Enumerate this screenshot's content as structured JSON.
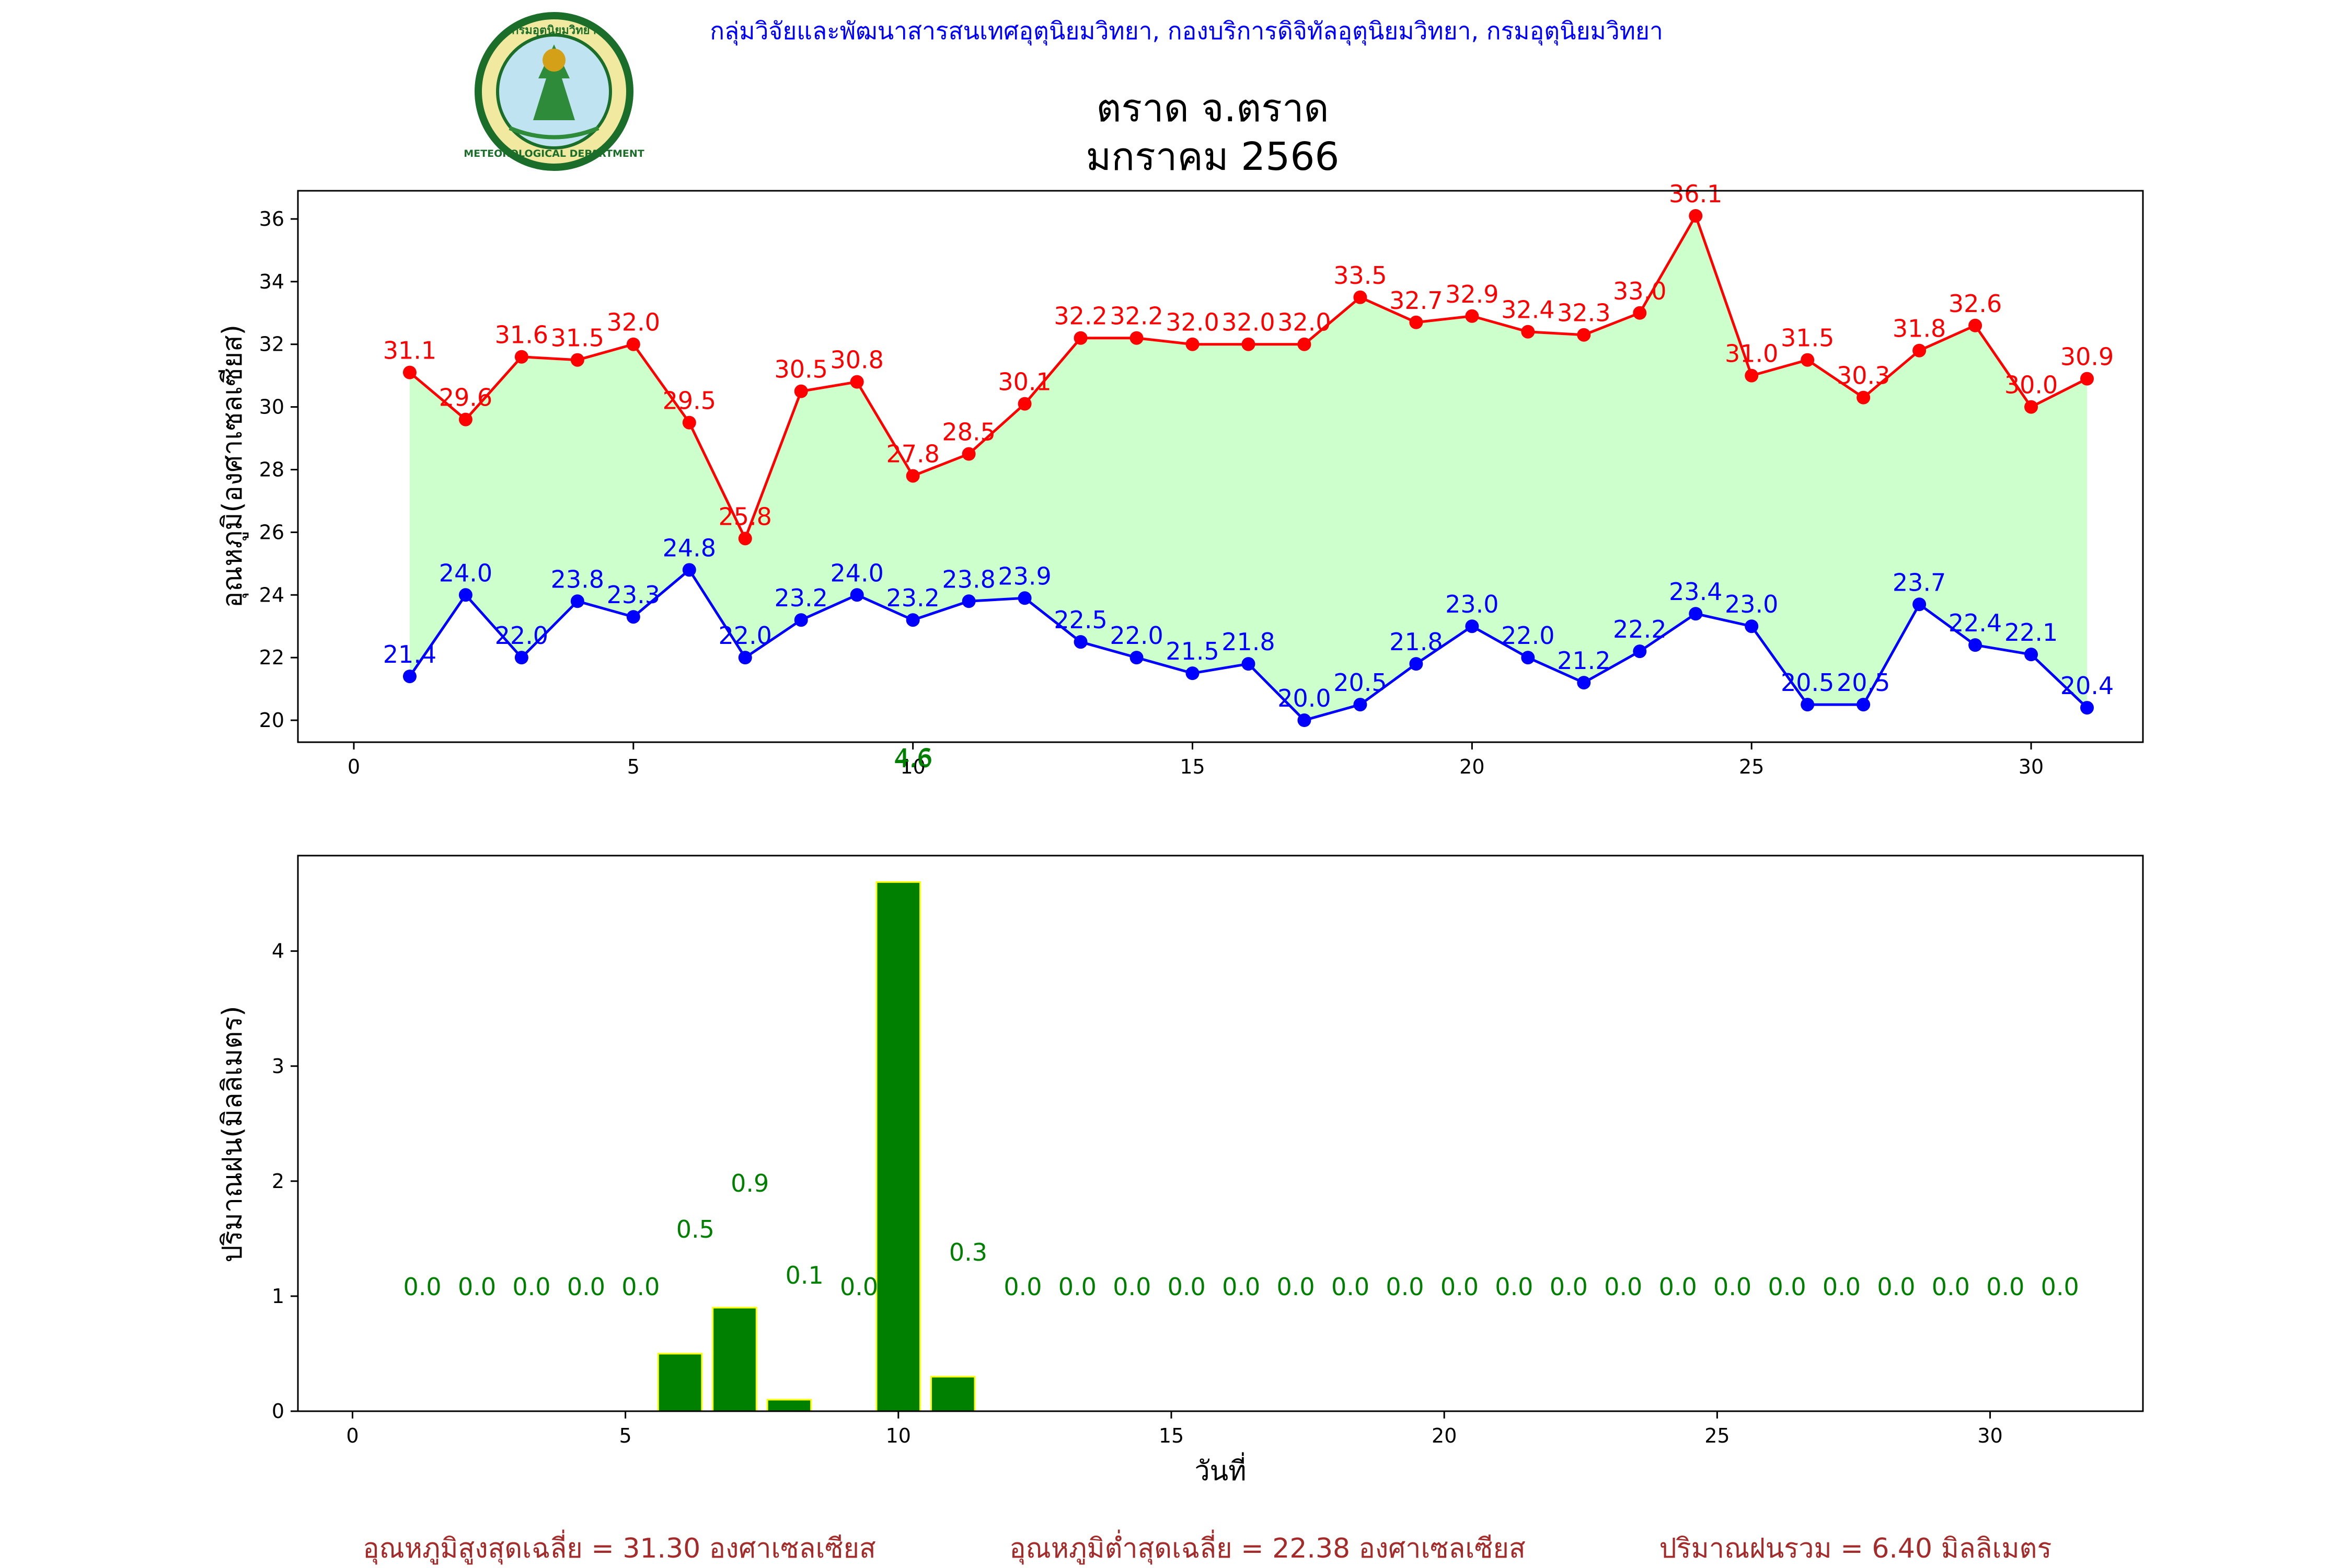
{
  "header": {
    "agency": "กลุ่มวิจัยและพัฒนาสารสนเทศอุตุนิยมวิทยา, กองบริการดิจิทัลอุตุนิยมวิทยา, กรมอุตุนิยมวิทยา",
    "station": "ตราด จ.ตราด",
    "period": "มกราคม 2566",
    "logo_text": "METEOROLOGICAL DEPARTMENT",
    "logo_top": "กรมอุตุนิยมวิทยา"
  },
  "summary": {
    "avg_max": "อุณหภูมิสูงสุดเฉลี่ย = 31.30 องศาเซลเซียส",
    "avg_min": "อุณหภูมิต่ำสุดเฉลี่ย = 22.38 องศาเซลเซียส",
    "rain_total": "ปริมาณฝนรวม = 6.40 มิลลิเมตร"
  },
  "colors": {
    "max_line": "#ff0000",
    "min_line": "#0000ff",
    "fill": "#ccffcc",
    "bar": "#008000",
    "bar_edge": "#ffff00",
    "rain_label": "#008000",
    "agency_text": "#0000ff",
    "summary_text": "#a52a2a"
  },
  "chart_data": [
    {
      "type": "line",
      "ylabel": "อุณหภูมิ(องศาเซลเซียส)",
      "xlabel": "",
      "xlim": [
        -1,
        32
      ],
      "ylim": [
        19.3,
        36.9
      ],
      "xticks": [
        0,
        5,
        10,
        15,
        20,
        25,
        30
      ],
      "yticks": [
        20,
        22,
        24,
        26,
        28,
        30,
        32,
        34,
        36
      ],
      "grid": false,
      "fill_between": true,
      "x": [
        1,
        2,
        3,
        4,
        5,
        6,
        7,
        8,
        9,
        10,
        11,
        12,
        13,
        14,
        15,
        16,
        17,
        18,
        19,
        20,
        21,
        22,
        23,
        24,
        25,
        26,
        27,
        28,
        29,
        30,
        31
      ],
      "series": [
        {
          "key": "max",
          "values": [
            31.1,
            29.6,
            31.6,
            31.5,
            32.0,
            29.5,
            25.8,
            30.5,
            30.8,
            27.8,
            28.5,
            30.1,
            32.2,
            32.2,
            32.0,
            32.0,
            32.0,
            33.5,
            32.7,
            32.9,
            32.4,
            32.3,
            33.0,
            36.1,
            31.0,
            31.5,
            30.3,
            31.8,
            32.6,
            30.0,
            30.9
          ]
        },
        {
          "key": "min",
          "values": [
            21.4,
            24.0,
            22.0,
            23.8,
            23.3,
            24.8,
            22.0,
            23.2,
            24.0,
            23.2,
            23.8,
            23.9,
            22.5,
            22.0,
            21.5,
            21.8,
            20.0,
            20.5,
            21.8,
            23.0,
            22.0,
            21.2,
            22.2,
            23.4,
            23.0,
            20.5,
            20.5,
            23.7,
            22.4,
            22.1,
            20.4
          ]
        }
      ],
      "stray_label": "4.6"
    },
    {
      "type": "bar",
      "ylabel": "ปริมาณฝน(มิลลิเมตร)",
      "xlabel": "วันที่",
      "xlim": [
        -1,
        32.8
      ],
      "ylim": [
        0,
        4.83
      ],
      "xticks": [
        0,
        5,
        10,
        15,
        20,
        25,
        30
      ],
      "yticks": [
        0,
        1,
        2,
        3,
        4
      ],
      "grid": false,
      "x": [
        1,
        2,
        3,
        4,
        5,
        6,
        7,
        8,
        9,
        10,
        11,
        12,
        13,
        14,
        15,
        16,
        17,
        18,
        19,
        20,
        21,
        22,
        23,
        24,
        25,
        26,
        27,
        28,
        29,
        30,
        31
      ],
      "values": [
        0.0,
        0.0,
        0.0,
        0.0,
        0.0,
        0.5,
        0.9,
        0.1,
        0.0,
        4.6,
        0.3,
        0.0,
        0.0,
        0.0,
        0.0,
        0.0,
        0.0,
        0.0,
        0.0,
        0.0,
        0.0,
        0.0,
        0.0,
        0.0,
        0.0,
        0.0,
        0.0,
        0.0,
        0.0,
        0.0,
        0.0
      ]
    }
  ]
}
